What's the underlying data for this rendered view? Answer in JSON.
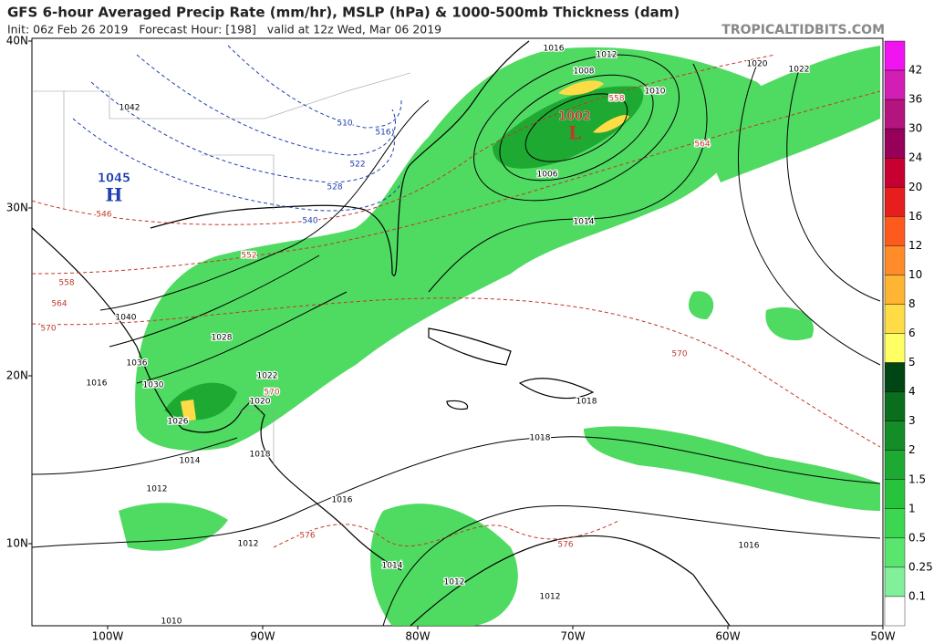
{
  "header": {
    "title": "GFS 6-hour Averaged Precip Rate (mm/hr), MSLP (hPa) & 1000-500mb Thickness (dam)",
    "subtitle": "Init: 06z Feb 26 2019   Forecast Hour: [198]   valid at 12z Wed, Mar 06 2019",
    "site": "TROPICALTIDBITS.COM"
  },
  "map": {
    "lat_labels": [
      "40N",
      "30N",
      "20N",
      "10N"
    ],
    "lon_labels": [
      "100W",
      "90W",
      "80W",
      "70W",
      "60W",
      "50W"
    ],
    "centers": [
      {
        "pressure": "1045",
        "symbol": "H"
      },
      {
        "pressure": "1002",
        "symbol": "L"
      }
    ],
    "isobar_labels": [
      "1042",
      "1040",
      "1036",
      "1030",
      "1028",
      "1026",
      "1016",
      "1022",
      "1020",
      "1018",
      "1014",
      "1012",
      "1012",
      "1016",
      "1014",
      "1012",
      "1012",
      "1010",
      "1018",
      "1018",
      "1016",
      "1014",
      "1016",
      "1012",
      "1008",
      "1010",
      "1006",
      "1020",
      "1022"
    ],
    "cold_thickness_labels": [
      "510",
      "516",
      "522",
      "528",
      "540"
    ],
    "warm_thickness_labels": [
      "546",
      "552",
      "558",
      "564",
      "570",
      "558",
      "564",
      "570",
      "570",
      "576",
      "576"
    ]
  },
  "colorbar": {
    "labels": [
      "42",
      "36",
      "30",
      "24",
      "20",
      "16",
      "12",
      "10",
      "8",
      "6",
      "5",
      "4",
      "3",
      "2",
      "1.5",
      "1",
      "0.5",
      "0.25",
      "0.1"
    ],
    "colors": [
      "#f014f0",
      "#d21eb4",
      "#b4147d",
      "#96005a",
      "#c80032",
      "#e61e1e",
      "#ff5a1e",
      "#ff8c28",
      "#ffb432",
      "#ffdc46",
      "#ffff64",
      "#004614",
      "#0a6e1e",
      "#148c28",
      "#1eaa32",
      "#28c33c",
      "#3cd750",
      "#5ae66e",
      "#82f09b",
      "#ffffff"
    ]
  }
}
